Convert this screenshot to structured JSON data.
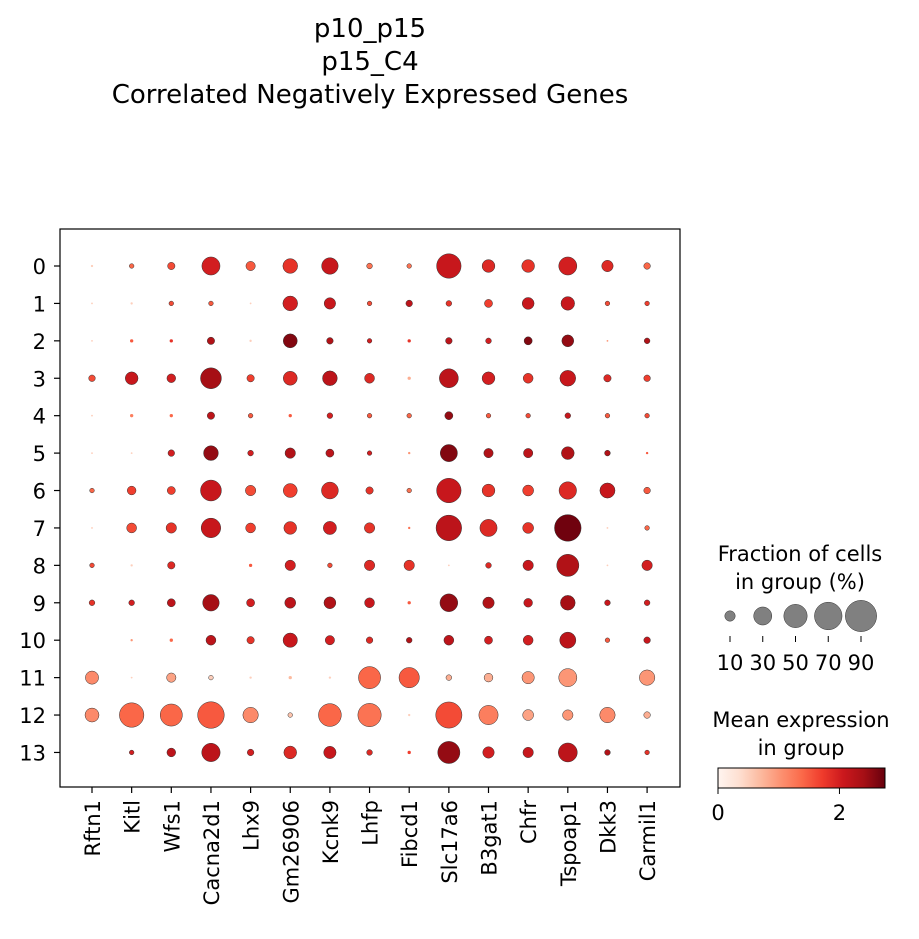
{
  "chart_data": {
    "type": "dotplot",
    "title_lines": [
      "p10_p15",
      "p15_C4",
      "Correlated Negatively Expressed Genes"
    ],
    "genes": [
      "Rftn1",
      "Kitl",
      "Wfs1",
      "Cacna2d1",
      "Lhx9",
      "Gm26906",
      "Kcnk9",
      "Lhfp",
      "Fibcd1",
      "Slc17a6",
      "B3gat1",
      "Chfr",
      "Tspoap1",
      "Dkk3",
      "Carmil1"
    ],
    "groups": [
      "0",
      "1",
      "2",
      "3",
      "4",
      "5",
      "6",
      "7",
      "8",
      "9",
      "10",
      "11",
      "12",
      "13"
    ],
    "fraction": [
      [
        0.5,
        2,
        5,
        30,
        8,
        20,
        25,
        3,
        2,
        55,
        15,
        15,
        30,
        12,
        4
      ],
      [
        0.3,
        0.5,
        2,
        2,
        0.3,
        20,
        12,
        2,
        4,
        3,
        6,
        13,
        17,
        2,
        2
      ],
      [
        0.3,
        1,
        1,
        5,
        0.5,
        18,
        4,
        2,
        1,
        4,
        3,
        6,
        13,
        0.3,
        3
      ],
      [
        4,
        15,
        7,
        40,
        5,
        18,
        20,
        9,
        1,
        33,
        15,
        9,
        23,
        5,
        4
      ],
      [
        0.3,
        1,
        1,
        5,
        2,
        1,
        3,
        2,
        2,
        6,
        2,
        2,
        3,
        2,
        2
      ],
      [
        0.3,
        0.3,
        4,
        20,
        3,
        10,
        6,
        2,
        0.5,
        27,
        8,
        8,
        15,
        3,
        0.5
      ],
      [
        2,
        7,
        6,
        40,
        10,
        18,
        26,
        5,
        2,
        55,
        15,
        11,
        28,
        21,
        4
      ],
      [
        0.3,
        9,
        10,
        35,
        9,
        15,
        16,
        10,
        0.5,
        60,
        27,
        11,
        65,
        0.3,
        2
      ],
      [
        2,
        0.5,
        5,
        0,
        1,
        10,
        2,
        10,
        10,
        0.3,
        3,
        10,
        45,
        0.3,
        10
      ],
      [
        3,
        3,
        6,
        25,
        6,
        11,
        13,
        9,
        1,
        29,
        12,
        7,
        20,
        3,
        3
      ],
      [
        0,
        0.5,
        1,
        9,
        5,
        19,
        8,
        4,
        3,
        9,
        6,
        9,
        24,
        2,
        4
      ],
      [
        16,
        0.3,
        8,
        2,
        0.5,
        1,
        0.5,
        45,
        38,
        3,
        7,
        14,
        30,
        0,
        22
      ],
      [
        18,
        55,
        45,
        65,
        22,
        2,
        48,
        50,
        0.5,
        63,
        34,
        11,
        10,
        22,
        4
      ],
      [
        0,
        2,
        7,
        31,
        4,
        15,
        14,
        3,
        1,
        45,
        12,
        10,
        33,
        3,
        2
      ]
    ],
    "expression": [
      [
        0.5,
        1.4,
        1.6,
        2.0,
        1.5,
        1.8,
        2.1,
        1.3,
        1.3,
        2.1,
        1.9,
        1.8,
        2.0,
        1.9,
        1.4
      ],
      [
        0.5,
        0.5,
        1.6,
        1.5,
        0.5,
        2.0,
        2.1,
        1.6,
        2.2,
        1.8,
        1.7,
        2.1,
        2.1,
        1.6,
        1.7
      ],
      [
        0.5,
        1.5,
        1.8,
        2.3,
        0.5,
        2.6,
        2.3,
        2.0,
        1.8,
        2.2,
        2.0,
        2.6,
        2.5,
        1.0,
        2.3
      ],
      [
        1.6,
        2.1,
        2.0,
        2.4,
        1.7,
        1.9,
        2.2,
        1.9,
        0.8,
        2.2,
        2.0,
        1.8,
        2.1,
        1.9,
        1.7
      ],
      [
        0.5,
        1.2,
        1.4,
        2.2,
        1.5,
        1.5,
        2.0,
        1.5,
        1.4,
        2.5,
        1.5,
        1.6,
        2.1,
        1.5,
        1.6
      ],
      [
        0.5,
        0.5,
        2.0,
        2.5,
        2.0,
        2.3,
        2.2,
        2.0,
        1.0,
        2.6,
        2.3,
        2.2,
        2.3,
        2.3,
        1.5
      ],
      [
        1.4,
        1.7,
        1.7,
        2.1,
        1.6,
        1.7,
        1.9,
        1.8,
        1.3,
        2.1,
        1.8,
        1.7,
        1.9,
        2.1,
        1.5
      ],
      [
        0.5,
        1.6,
        1.8,
        2.1,
        1.7,
        1.8,
        2.0,
        1.8,
        1.3,
        2.2,
        1.9,
        1.8,
        2.7,
        0.5,
        1.4
      ],
      [
        1.6,
        0.5,
        1.9,
        0,
        1.5,
        2.0,
        1.6,
        1.9,
        1.8,
        0.5,
        1.9,
        2.1,
        2.3,
        0.5,
        2.0
      ],
      [
        1.8,
        2.0,
        2.2,
        2.4,
        2.0,
        2.2,
        2.3,
        2.1,
        1.5,
        2.5,
        2.3,
        2.1,
        2.4,
        2.1,
        2.0
      ],
      [
        0,
        1.0,
        1.4,
        2.2,
        1.8,
        2.1,
        2.0,
        1.9,
        2.3,
        2.2,
        2.0,
        2.0,
        2.2,
        1.5,
        2.1
      ],
      [
        1.1,
        0.5,
        0.9,
        0.5,
        0.5,
        0.7,
        0.5,
        1.4,
        1.5,
        0.8,
        0.8,
        1.0,
        1.0,
        0,
        1.0
      ],
      [
        1.1,
        1.4,
        1.4,
        1.5,
        1.1,
        0.6,
        1.4,
        1.3,
        0.5,
        1.6,
        1.2,
        0.9,
        1.0,
        1.1,
        0.8
      ],
      [
        0,
        2.0,
        2.2,
        2.2,
        2.0,
        1.9,
        2.1,
        1.9,
        1.7,
        2.5,
        2.0,
        2.1,
        2.2,
        2.3,
        1.8
      ]
    ],
    "size_legend": {
      "title_lines": [
        "Fraction of cells",
        "in group (%)"
      ],
      "values": [
        10,
        30,
        50,
        70,
        90
      ],
      "labels": [
        "10",
        "30",
        "50",
        "70",
        "90"
      ]
    },
    "color_legend": {
      "title_lines": [
        "Mean expression",
        "in group"
      ],
      "min": 0,
      "max": 2.75,
      "ticks": [
        0,
        2
      ],
      "tick_labels": [
        "0",
        "2"
      ],
      "colormap": [
        "#fff5f0",
        "#fee0d2",
        "#fcbba1",
        "#fc9272",
        "#fb6a4a",
        "#ef3b2c",
        "#cb181d",
        "#a50f15",
        "#67000d"
      ]
    }
  }
}
